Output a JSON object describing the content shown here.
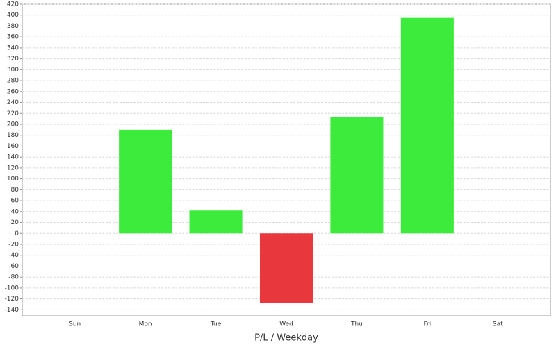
{
  "chart_data": {
    "type": "bar",
    "x_label": "P/L / Weekday",
    "categories": [
      "Sun",
      "Mon",
      "Tue",
      "Wed",
      "Thu",
      "Fri",
      "Sat"
    ],
    "values": [
      0,
      190,
      42,
      -127,
      214,
      395,
      0
    ],
    "positive_color": "#3deb3d",
    "negative_color": "#e8383d",
    "ylim": [
      -151,
      420
    ],
    "yticks": [
      -140,
      -120,
      -100,
      -80,
      -60,
      -40,
      -20,
      0,
      20,
      40,
      60,
      80,
      100,
      120,
      140,
      160,
      180,
      200,
      220,
      240,
      260,
      280,
      300,
      320,
      340,
      360,
      380,
      400,
      420
    ],
    "grid": true
  }
}
